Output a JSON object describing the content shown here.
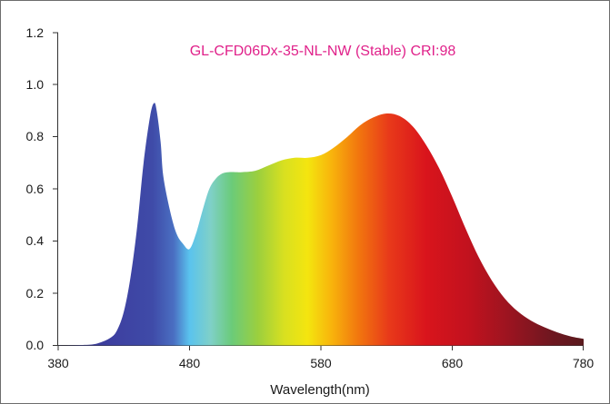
{
  "chart_data": {
    "type": "area",
    "title": "GL-CFD06Dx-35-NL-NW (Stable) CRI:98",
    "title_color": "#e0218a",
    "xlabel": "Wavelength(nm)",
    "ylabel": "",
    "xlim": [
      380,
      780
    ],
    "ylim": [
      0,
      1.2
    ],
    "x_ticks": [
      "380",
      "480",
      "580",
      "680",
      "780"
    ],
    "y_ticks": [
      "0.0",
      "0.2",
      "0.4",
      "0.6",
      "0.8",
      "1.0",
      "1.2"
    ],
    "grid": false,
    "fill": "visible-spectrum gradient",
    "series": [
      {
        "x": [
          380,
          400,
          410,
          420,
          425,
          430,
          435,
          440,
          445,
          450,
          453,
          455,
          458,
          460,
          465,
          470,
          475,
          480,
          485,
          490,
          495,
          500,
          505,
          510,
          515,
          520,
          530,
          540,
          550,
          560,
          570,
          580,
          590,
          600,
          610,
          620,
          630,
          640,
          650,
          660,
          670,
          680,
          690,
          700,
          710,
          720,
          730,
          740,
          750,
          760,
          770,
          780
        ],
        "values": [
          0,
          0.002,
          0.008,
          0.03,
          0.06,
          0.13,
          0.26,
          0.45,
          0.7,
          0.88,
          0.93,
          0.9,
          0.78,
          0.65,
          0.52,
          0.43,
          0.39,
          0.37,
          0.43,
          0.52,
          0.6,
          0.64,
          0.66,
          0.665,
          0.665,
          0.665,
          0.67,
          0.69,
          0.71,
          0.72,
          0.72,
          0.73,
          0.76,
          0.8,
          0.845,
          0.875,
          0.89,
          0.88,
          0.84,
          0.77,
          0.68,
          0.57,
          0.45,
          0.34,
          0.25,
          0.18,
          0.13,
          0.095,
          0.07,
          0.05,
          0.035,
          0.025
        ]
      }
    ]
  }
}
